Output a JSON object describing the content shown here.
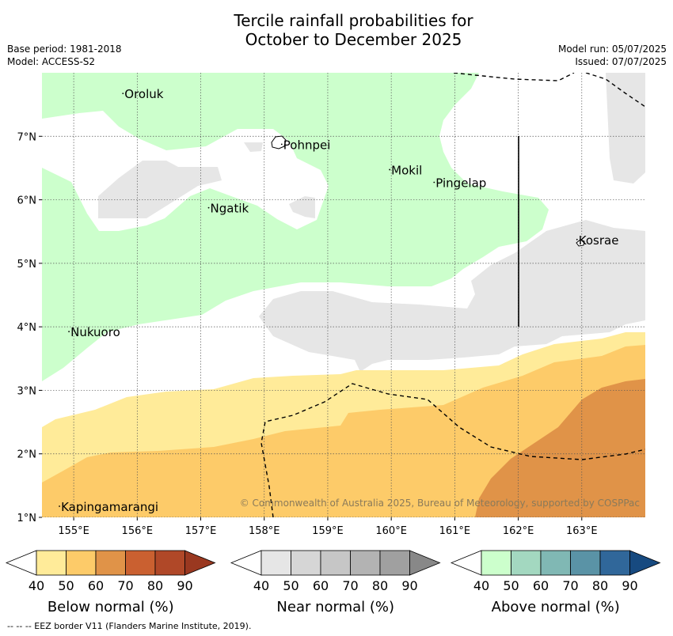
{
  "title_line1": "Tercile rainfall probabilities for",
  "title_line2": "October to December 2025",
  "meta": {
    "base_period": "Base period: 1981-2018",
    "model": "Model: ACCESS-S2",
    "model_run": "Model run: 05/07/2025",
    "issued": "Issued: 07/07/2025"
  },
  "map": {
    "lon_range": [
      154.5,
      164.0
    ],
    "lat_range": [
      1.0,
      8.0
    ],
    "x_ticks": [
      "155°E",
      "156°E",
      "157°E",
      "158°E",
      "159°E",
      "160°E",
      "161°E",
      "162°E",
      "163°E"
    ],
    "y_ticks": [
      "1°N",
      "2°N",
      "3°N",
      "4°N",
      "5°N",
      "6°N",
      "7°N"
    ],
    "places": [
      {
        "name": "Oroluk",
        "lon": 155.8,
        "lat": 7.6
      },
      {
        "name": "Pohnpei",
        "lon": 158.3,
        "lat": 6.8
      },
      {
        "name": "Mokil",
        "lon": 160.0,
        "lat": 6.4
      },
      {
        "name": "Pingelap",
        "lon": 160.7,
        "lat": 6.2
      },
      {
        "name": "Ngatik",
        "lon": 157.15,
        "lat": 5.8
      },
      {
        "name": "Kosrae",
        "lon": 162.95,
        "lat": 5.3
      },
      {
        "name": "Nukuoro",
        "lon": 154.95,
        "lat": 3.85
      },
      {
        "name": "Kapingamarangi",
        "lon": 154.8,
        "lat": 1.1
      }
    ],
    "copyright": "© Commonwealth of Australia 2025, Bureau of Meteorology, supported by COSPPac",
    "colors": {
      "above_light": "#ccffcc",
      "near_light": "#e6e6e6",
      "below_light": "#ffeb99",
      "below_mid": "#fdcb69",
      "below_dark": "#e09348"
    }
  },
  "legends": [
    {
      "title": "Below normal (%)",
      "ticks": [
        "40",
        "50",
        "60",
        "70",
        "80",
        "90"
      ],
      "colors": [
        "#ffeb99",
        "#fdcb69",
        "#e09348",
        "#ca6030",
        "#b04828",
        "#9a3820"
      ]
    },
    {
      "title": "Near normal (%)",
      "ticks": [
        "40",
        "50",
        "60",
        "70",
        "80",
        "90"
      ],
      "colors": [
        "#e6e6e6",
        "#d6d6d6",
        "#c6c6c6",
        "#b3b3b3",
        "#a0a0a0",
        "#888888"
      ]
    },
    {
      "title": "Above normal (%)",
      "ticks": [
        "40",
        "50",
        "60",
        "70",
        "80",
        "90"
      ],
      "colors": [
        "#ccffcc",
        "#a3d8c0",
        "#80b8b4",
        "#5a93a6",
        "#30679a",
        "#174a80"
      ]
    }
  ],
  "footer": "-- -- -- EEZ border V11 (Flanders Marine Institute, 2019)."
}
